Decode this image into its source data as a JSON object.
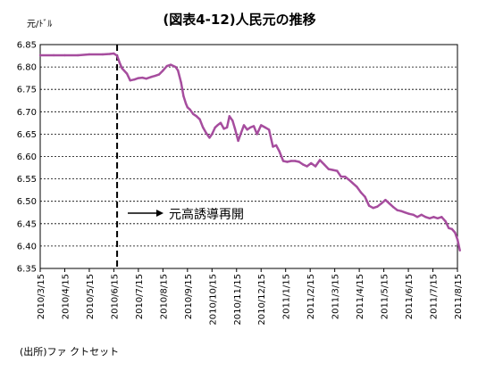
{
  "chart_data": {
    "type": "line",
    "title": "(図表4-12)人民元の推移",
    "ylabel": "元/ﾄﾞﾙ",
    "xlabel": "",
    "ylim": [
      6.35,
      6.85
    ],
    "yticks": [
      "6.85",
      "6.80",
      "6.75",
      "6.70",
      "6.65",
      "6.60",
      "6.55",
      "6.50",
      "6.45",
      "6.40",
      "6.35"
    ],
    "grid": true,
    "xticks": [
      "2010/3/15",
      "2010/4/15",
      "2010/5/15",
      "2010/6/15",
      "2010/7/15",
      "2010/8/15",
      "2010/9/15",
      "2010/10/15",
      "2010/11/15",
      "2010/12/15",
      "2011/1/15",
      "2011/2/15",
      "2011/3/15",
      "2011/4/15",
      "2011/5/15",
      "2011/6/15",
      "2011/7/15",
      "2011/8/15"
    ],
    "series": [
      {
        "name": "",
        "color": "#a64d9e",
        "x": [
          "2010-03-15",
          "2010-04-01",
          "2010-04-15",
          "2010-05-01",
          "2010-05-15",
          "2010-06-01",
          "2010-06-10",
          "2010-06-15",
          "2010-06-19",
          "2010-06-22",
          "2010-06-25",
          "2010-07-01",
          "2010-07-05",
          "2010-07-10",
          "2010-07-15",
          "2010-07-20",
          "2010-07-25",
          "2010-08-01",
          "2010-08-05",
          "2010-08-10",
          "2010-08-15",
          "2010-08-20",
          "2010-08-25",
          "2010-08-31",
          "2010-09-03",
          "2010-09-07",
          "2010-09-10",
          "2010-09-13",
          "2010-09-15",
          "2010-09-18",
          "2010-09-22",
          "2010-09-26",
          "2010-09-30",
          "2010-10-04",
          "2010-10-08",
          "2010-10-12",
          "2010-10-15",
          "2010-10-19",
          "2010-10-22",
          "2010-10-26",
          "2010-10-30",
          "2010-11-03",
          "2010-11-06",
          "2010-11-10",
          "2010-11-13",
          "2010-11-17",
          "2010-11-20",
          "2010-11-24",
          "2010-11-28",
          "2010-12-02",
          "2010-12-06",
          "2010-12-10",
          "2010-12-15",
          "2010-12-20",
          "2010-12-25",
          "2010-12-30",
          "2011-01-03",
          "2011-01-07",
          "2011-01-12",
          "2011-01-17",
          "2011-01-22",
          "2011-01-27",
          "2011-02-01",
          "2011-02-06",
          "2011-02-11",
          "2011-02-16",
          "2011-02-21",
          "2011-02-26",
          "2011-03-03",
          "2011-03-08",
          "2011-03-13",
          "2011-03-18",
          "2011-03-23",
          "2011-03-28",
          "2011-04-02",
          "2011-04-07",
          "2011-04-12",
          "2011-04-17",
          "2011-04-22",
          "2011-04-27",
          "2011-05-02",
          "2011-05-07",
          "2011-05-12",
          "2011-05-17",
          "2011-05-22",
          "2011-05-27",
          "2011-06-01",
          "2011-06-06",
          "2011-06-11",
          "2011-06-16",
          "2011-06-21",
          "2011-06-26",
          "2011-07-01",
          "2011-07-06",
          "2011-07-11",
          "2011-07-16",
          "2011-07-21",
          "2011-07-26",
          "2011-07-31",
          "2011-08-04",
          "2011-08-08",
          "2011-08-12",
          "2011-08-15",
          "2011-08-18"
        ],
        "values": [
          6.826,
          6.826,
          6.826,
          6.826,
          6.828,
          6.828,
          6.829,
          6.83,
          6.825,
          6.81,
          6.797,
          6.785,
          6.77,
          6.772,
          6.775,
          6.776,
          6.774,
          6.778,
          6.78,
          6.783,
          6.792,
          6.802,
          6.805,
          6.8,
          6.792,
          6.765,
          6.735,
          6.718,
          6.71,
          6.705,
          6.695,
          6.69,
          6.683,
          6.665,
          6.652,
          6.642,
          6.65,
          6.665,
          6.67,
          6.675,
          6.662,
          6.665,
          6.69,
          6.68,
          6.662,
          6.635,
          6.65,
          6.67,
          6.66,
          6.665,
          6.668,
          6.65,
          6.67,
          6.665,
          6.66,
          6.622,
          6.625,
          6.612,
          6.59,
          6.588,
          6.59,
          6.59,
          6.588,
          6.582,
          6.578,
          6.585,
          6.578,
          6.592,
          6.582,
          6.572,
          6.57,
          6.568,
          6.555,
          6.555,
          6.548,
          6.54,
          6.532,
          6.52,
          6.51,
          6.49,
          6.485,
          6.488,
          6.495,
          6.503,
          6.495,
          6.487,
          6.48,
          6.478,
          6.475,
          6.472,
          6.47,
          6.465,
          6.47,
          6.465,
          6.462,
          6.465,
          6.462,
          6.465,
          6.455,
          6.44,
          6.438,
          6.43,
          6.415,
          6.39
        ]
      }
    ],
    "annotation": "元高誘導再開",
    "marker_date": "2010-06-19"
  },
  "source": "(出所)ファ クトセット"
}
